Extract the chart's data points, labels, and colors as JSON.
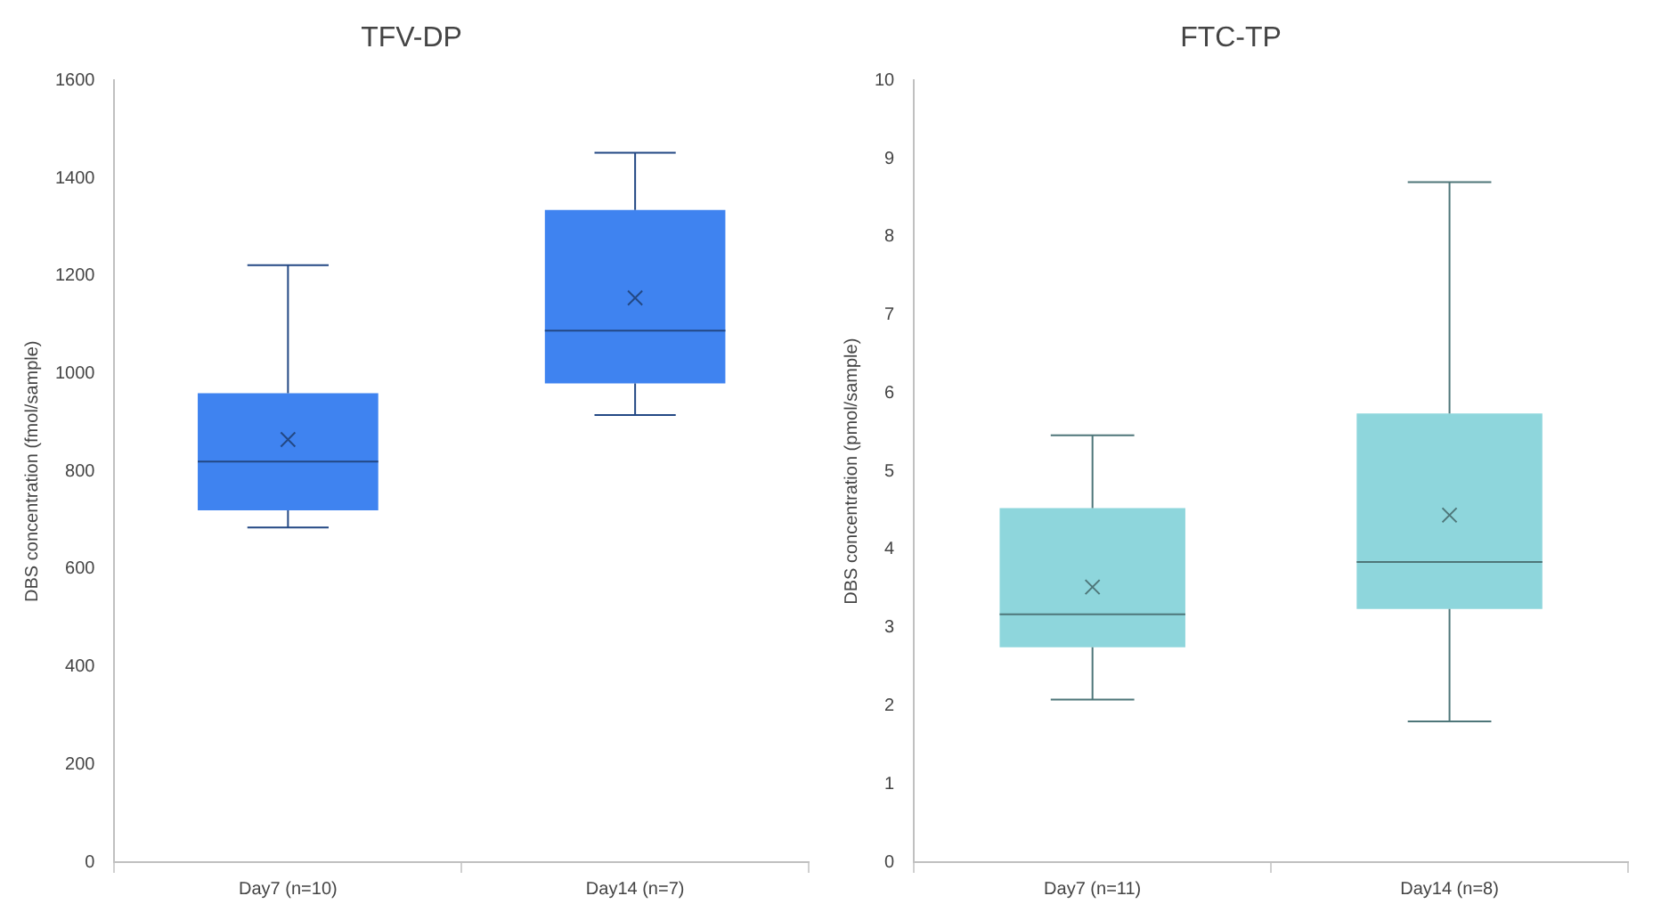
{
  "chart_data": [
    {
      "type": "box",
      "title": "TFV-DP",
      "ylabel": "DBS concentration (fmol/sample)",
      "categories": [
        "Day7 (n=10)",
        "Day14 (n=7)"
      ],
      "color": "#3f83f0",
      "ylim": [
        0,
        1600
      ],
      "yticks": [
        0,
        200,
        400,
        600,
        800,
        1000,
        1200,
        1400,
        1600
      ],
      "grid": false,
      "boxes": [
        {
          "low": 685,
          "q1": 720,
          "median": 820,
          "q3": 960,
          "high": 1222,
          "mean": 865
        },
        {
          "low": 915,
          "q1": 980,
          "median": 1088,
          "q3": 1335,
          "high": 1452,
          "mean": 1155
        }
      ]
    },
    {
      "type": "box",
      "title": "FTC-TP",
      "ylabel": "DBS concentration (pmol/sample)",
      "categories": [
        "Day7 (n=11)",
        "Day14 (n=8)"
      ],
      "color": "#8ed6dc",
      "ylim": [
        0,
        10
      ],
      "yticks": [
        0,
        1,
        2,
        3,
        4,
        5,
        6,
        7,
        8,
        9,
        10
      ],
      "grid": false,
      "boxes": [
        {
          "low": 2.08,
          "q1": 2.75,
          "median": 3.17,
          "q3": 4.53,
          "high": 5.46,
          "mean": 3.52
        },
        {
          "low": 1.8,
          "q1": 3.24,
          "median": 3.84,
          "q3": 5.74,
          "high": 8.7,
          "mean": 4.44
        }
      ]
    }
  ]
}
